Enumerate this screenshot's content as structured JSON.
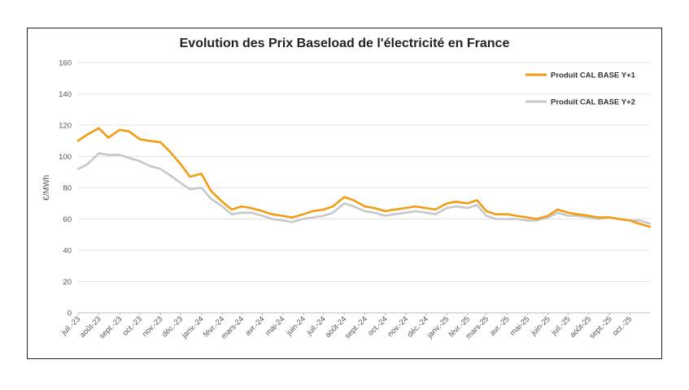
{
  "chart_data": {
    "type": "line",
    "title": "Evolution des Prix Baseload de l'électricité en France",
    "xlabel": "",
    "ylabel": "€/MWh",
    "ylim": [
      0,
      160
    ],
    "yticks": [
      0,
      20,
      40,
      60,
      80,
      100,
      120,
      140,
      160
    ],
    "grid": true,
    "legend_position": "top-right",
    "x_tick_labels": [
      "juil.-23",
      "août-23",
      "sept.-23",
      "oct.-23",
      "nov.-23",
      "déc.-23",
      "janv.-24",
      "févr.-24",
      "mars-24",
      "avr.-24",
      "mai-24",
      "juin-24",
      "juil.-24",
      "août-24",
      "sept.-24",
      "oct.-24",
      "nov.-24",
      "déc.-24",
      "janv.-25",
      "févr.-25",
      "mars-25",
      "avr.-25",
      "mai-25",
      "juin-25",
      "juil.-25",
      "août-25",
      "sept.-25",
      "oct.-25"
    ],
    "x": [
      "2023-07-01",
      "2023-07-15",
      "2023-08-01",
      "2023-08-15",
      "2023-09-01",
      "2023-09-15",
      "2023-10-01",
      "2023-10-15",
      "2023-11-01",
      "2023-11-15",
      "2023-12-01",
      "2023-12-15",
      "2024-01-01",
      "2024-01-15",
      "2024-02-01",
      "2024-02-15",
      "2024-03-01",
      "2024-03-15",
      "2024-04-01",
      "2024-04-15",
      "2024-05-01",
      "2024-05-15",
      "2024-06-01",
      "2024-06-15",
      "2024-07-01",
      "2024-07-15",
      "2024-08-01",
      "2024-08-15",
      "2024-09-01",
      "2024-09-15",
      "2024-10-01",
      "2024-10-15",
      "2024-11-01",
      "2024-11-15",
      "2024-12-01",
      "2024-12-15",
      "2025-01-01",
      "2025-01-15",
      "2025-02-01",
      "2025-02-15",
      "2025-03-01",
      "2025-03-15",
      "2025-04-01",
      "2025-04-15",
      "2025-05-01",
      "2025-05-15",
      "2025-06-01",
      "2025-06-15",
      "2025-07-01",
      "2025-07-15",
      "2025-08-01",
      "2025-08-15",
      "2025-09-01",
      "2025-09-15",
      "2025-10-01",
      "2025-10-15",
      "2025-10-31"
    ],
    "series": [
      {
        "name": "Produit CAL BASE Y+1",
        "color": "#F39C12",
        "values": [
          110,
          114,
          118,
          112,
          117,
          116,
          111,
          110,
          109,
          103,
          95,
          87,
          89,
          78,
          71,
          66,
          68,
          67,
          65,
          63,
          62,
          61,
          63,
          65,
          66,
          68,
          74,
          72,
          68,
          67,
          65,
          66,
          67,
          68,
          67,
          66,
          70,
          71,
          70,
          72,
          65,
          63,
          63,
          62,
          61,
          60,
          62,
          66,
          64,
          63,
          62,
          61,
          61,
          60,
          59,
          57,
          55
        ]
      },
      {
        "name": "Produit CAL BASE Y+2",
        "color": "#C8C8C8",
        "values": [
          92,
          95,
          102,
          101,
          101,
          99,
          97,
          94,
          92,
          88,
          83,
          79,
          80,
          73,
          68,
          63,
          64,
          64,
          62,
          60,
          59,
          58,
          60,
          61,
          62,
          64,
          70,
          68,
          65,
          64,
          62,
          63,
          64,
          65,
          64,
          63,
          67,
          68,
          67,
          69,
          62,
          60,
          60,
          60,
          59,
          59,
          61,
          64,
          62,
          62,
          61,
          60,
          61,
          60,
          59,
          59,
          57
        ]
      }
    ]
  }
}
